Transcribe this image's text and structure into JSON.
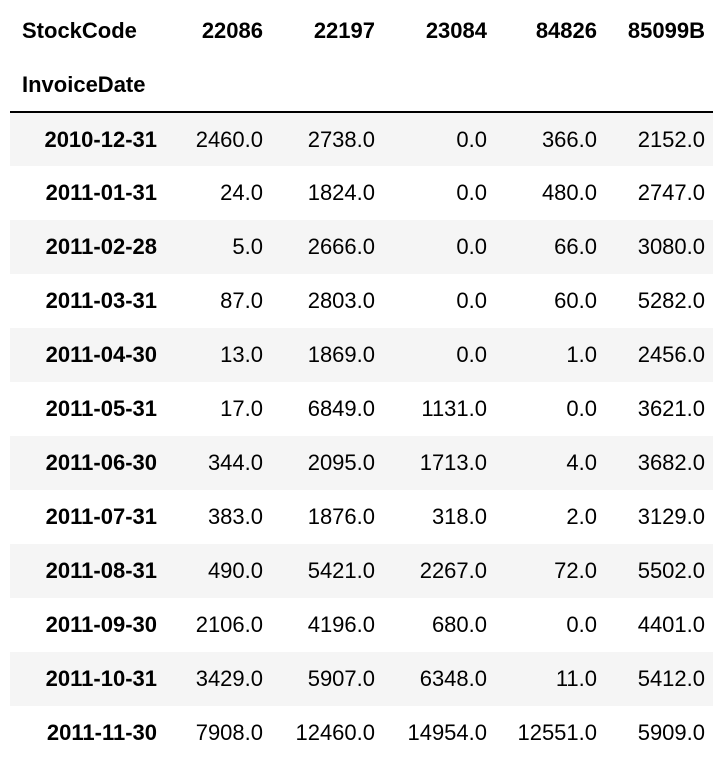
{
  "table": {
    "columns_name": "StockCode",
    "index_name": "InvoiceDate",
    "columns": [
      "22086",
      "22197",
      "23084",
      "84826",
      "85099B"
    ],
    "rows": [
      {
        "date": "2010-12-31",
        "values": [
          "2460.0",
          "2738.0",
          "0.0",
          "366.0",
          "2152.0"
        ]
      },
      {
        "date": "2011-01-31",
        "values": [
          "24.0",
          "1824.0",
          "0.0",
          "480.0",
          "2747.0"
        ]
      },
      {
        "date": "2011-02-28",
        "values": [
          "5.0",
          "2666.0",
          "0.0",
          "66.0",
          "3080.0"
        ]
      },
      {
        "date": "2011-03-31",
        "values": [
          "87.0",
          "2803.0",
          "0.0",
          "60.0",
          "5282.0"
        ]
      },
      {
        "date": "2011-04-30",
        "values": [
          "13.0",
          "1869.0",
          "0.0",
          "1.0",
          "2456.0"
        ]
      },
      {
        "date": "2011-05-31",
        "values": [
          "17.0",
          "6849.0",
          "1131.0",
          "0.0",
          "3621.0"
        ]
      },
      {
        "date": "2011-06-30",
        "values": [
          "344.0",
          "2095.0",
          "1713.0",
          "4.0",
          "3682.0"
        ]
      },
      {
        "date": "2011-07-31",
        "values": [
          "383.0",
          "1876.0",
          "318.0",
          "2.0",
          "3129.0"
        ]
      },
      {
        "date": "2011-08-31",
        "values": [
          "490.0",
          "5421.0",
          "2267.0",
          "72.0",
          "5502.0"
        ]
      },
      {
        "date": "2011-09-30",
        "values": [
          "2106.0",
          "4196.0",
          "680.0",
          "0.0",
          "4401.0"
        ]
      },
      {
        "date": "2011-10-31",
        "values": [
          "3429.0",
          "5907.0",
          "6348.0",
          "11.0",
          "5412.0"
        ]
      },
      {
        "date": "2011-11-30",
        "values": [
          "7908.0",
          "12460.0",
          "14954.0",
          "12551.0",
          "5909.0"
        ]
      }
    ]
  }
}
